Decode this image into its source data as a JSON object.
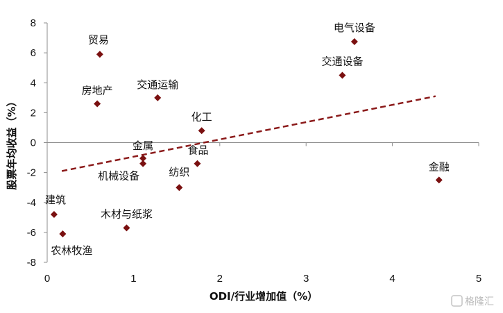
{
  "chart_data": {
    "type": "scatter",
    "xlabel": "ODI/行业增加值（%）",
    "ylabel": "股票年均收益（%）",
    "xlim": [
      0,
      5
    ],
    "ylim": [
      -8,
      8
    ],
    "x_ticks": [
      "0",
      "1",
      "2",
      "3",
      "4",
      "5"
    ],
    "y_ticks": [
      "8",
      "6",
      "4",
      "2",
      "0",
      "-2",
      "-4",
      "-6",
      "-8"
    ],
    "point_color": "#7a1010",
    "trend_color": "#8b1a1a",
    "trendline": {
      "style": "dashed",
      "x": [
        0.17,
        4.5
      ],
      "y": [
        -1.9,
        3.1
      ]
    },
    "points": [
      {
        "label": "电气设备",
        "x": 3.56,
        "y": 6.75
      },
      {
        "label": "交通设备",
        "x": 3.42,
        "y": 4.5
      },
      {
        "label": "贸易",
        "x": 0.61,
        "y": 5.9
      },
      {
        "label": "房地产",
        "x": 0.58,
        "y": 2.6
      },
      {
        "label": "交通运输",
        "x": 1.28,
        "y": 3.0
      },
      {
        "label": "化工",
        "x": 1.79,
        "y": 0.8
      },
      {
        "label": "金属",
        "x": 1.11,
        "y": -1.05
      },
      {
        "label": "机械设备",
        "x": 1.11,
        "y": -1.4
      },
      {
        "label": "食品",
        "x": 1.74,
        "y": -1.4
      },
      {
        "label": "纺织",
        "x": 1.53,
        "y": -3.0
      },
      {
        "label": "金融",
        "x": 4.54,
        "y": -2.5
      },
      {
        "label": "建筑",
        "x": 0.08,
        "y": -4.8
      },
      {
        "label": "木材与纸浆",
        "x": 0.92,
        "y": -5.7
      },
      {
        "label": "农林牧渔",
        "x": 0.18,
        "y": -6.1
      }
    ]
  },
  "watermark": "格隆汇"
}
